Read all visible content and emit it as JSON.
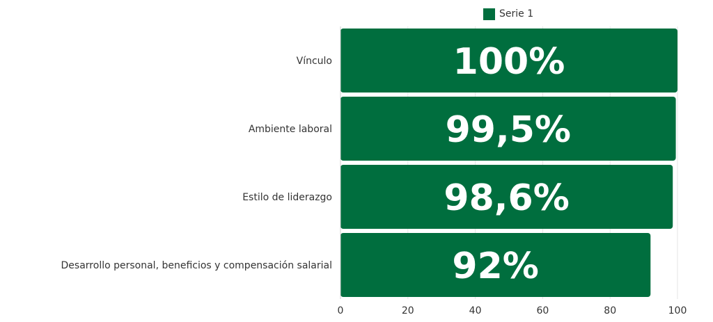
{
  "chart_data": {
    "type": "bar",
    "orientation": "horizontal",
    "categories": [
      "Vínculo",
      "Ambiente laboral",
      "Estilo de liderazgo",
      "Desarrollo personal, beneficios y compensación salarial"
    ],
    "series": [
      {
        "name": "Serie 1",
        "values": [
          100,
          99.5,
          98.6,
          92
        ],
        "labels": [
          "100%",
          "99,5%",
          "98,6%",
          "92%"
        ]
      }
    ],
    "xlim": [
      0,
      100
    ],
    "x_ticks": [
      "0",
      "20",
      "40",
      "60",
      "80",
      "100"
    ],
    "grid": true,
    "legend": "top-center",
    "colors": {
      "bar": "#006e3e",
      "grid": "#e6e6e6",
      "text": "#333333",
      "data_label": "#ffffff"
    }
  }
}
